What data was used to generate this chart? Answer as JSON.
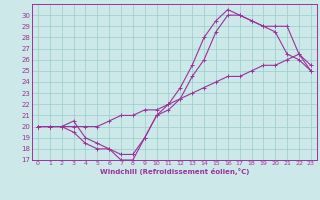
{
  "title": "",
  "xlabel": "Windchill (Refroidissement éolien,°C)",
  "xlim": [
    -0.5,
    23.5
  ],
  "ylim": [
    17,
    31
  ],
  "xticks": [
    0,
    1,
    2,
    3,
    4,
    5,
    6,
    7,
    8,
    9,
    10,
    11,
    12,
    13,
    14,
    15,
    16,
    17,
    18,
    19,
    20,
    21,
    22,
    23
  ],
  "yticks": [
    17,
    18,
    19,
    20,
    21,
    22,
    23,
    24,
    25,
    26,
    27,
    28,
    29,
    30
  ],
  "bg_color": "#cce8e8",
  "line_color": "#993399",
  "grid_color": "#99cccc",
  "series": [
    {
      "x": [
        0,
        1,
        2,
        3,
        4,
        5,
        6,
        7,
        8,
        9,
        10,
        11,
        12,
        13,
        14,
        15,
        16,
        17,
        18,
        19,
        20,
        21,
        22,
        23
      ],
      "y": [
        20.0,
        20.0,
        20.0,
        20.5,
        19.0,
        18.5,
        18.0,
        17.5,
        17.5,
        19.0,
        21.0,
        22.0,
        23.5,
        25.5,
        28.0,
        29.5,
        30.5,
        30.0,
        29.5,
        29.0,
        29.0,
        29.0,
        26.5,
        25.5
      ]
    },
    {
      "x": [
        0,
        1,
        2,
        3,
        4,
        5,
        6,
        7,
        8,
        9,
        10,
        11,
        12,
        13,
        14,
        15,
        16,
        17,
        18,
        19,
        20,
        21,
        22,
        23
      ],
      "y": [
        20.0,
        20.0,
        20.0,
        19.5,
        18.5,
        18.0,
        18.0,
        17.0,
        17.0,
        19.0,
        21.0,
        21.5,
        22.5,
        24.5,
        26.0,
        28.5,
        30.0,
        30.0,
        29.5,
        29.0,
        28.5,
        26.5,
        26.0,
        25.0
      ]
    },
    {
      "x": [
        0,
        1,
        2,
        3,
        4,
        5,
        6,
        7,
        8,
        9,
        10,
        11,
        12,
        13,
        14,
        15,
        16,
        17,
        18,
        19,
        20,
        21,
        22,
        23
      ],
      "y": [
        20.0,
        20.0,
        20.0,
        20.0,
        20.0,
        20.0,
        20.5,
        21.0,
        21.0,
        21.5,
        21.5,
        22.0,
        22.5,
        23.0,
        23.5,
        24.0,
        24.5,
        24.5,
        25.0,
        25.5,
        25.5,
        26.0,
        26.5,
        25.0
      ]
    }
  ]
}
